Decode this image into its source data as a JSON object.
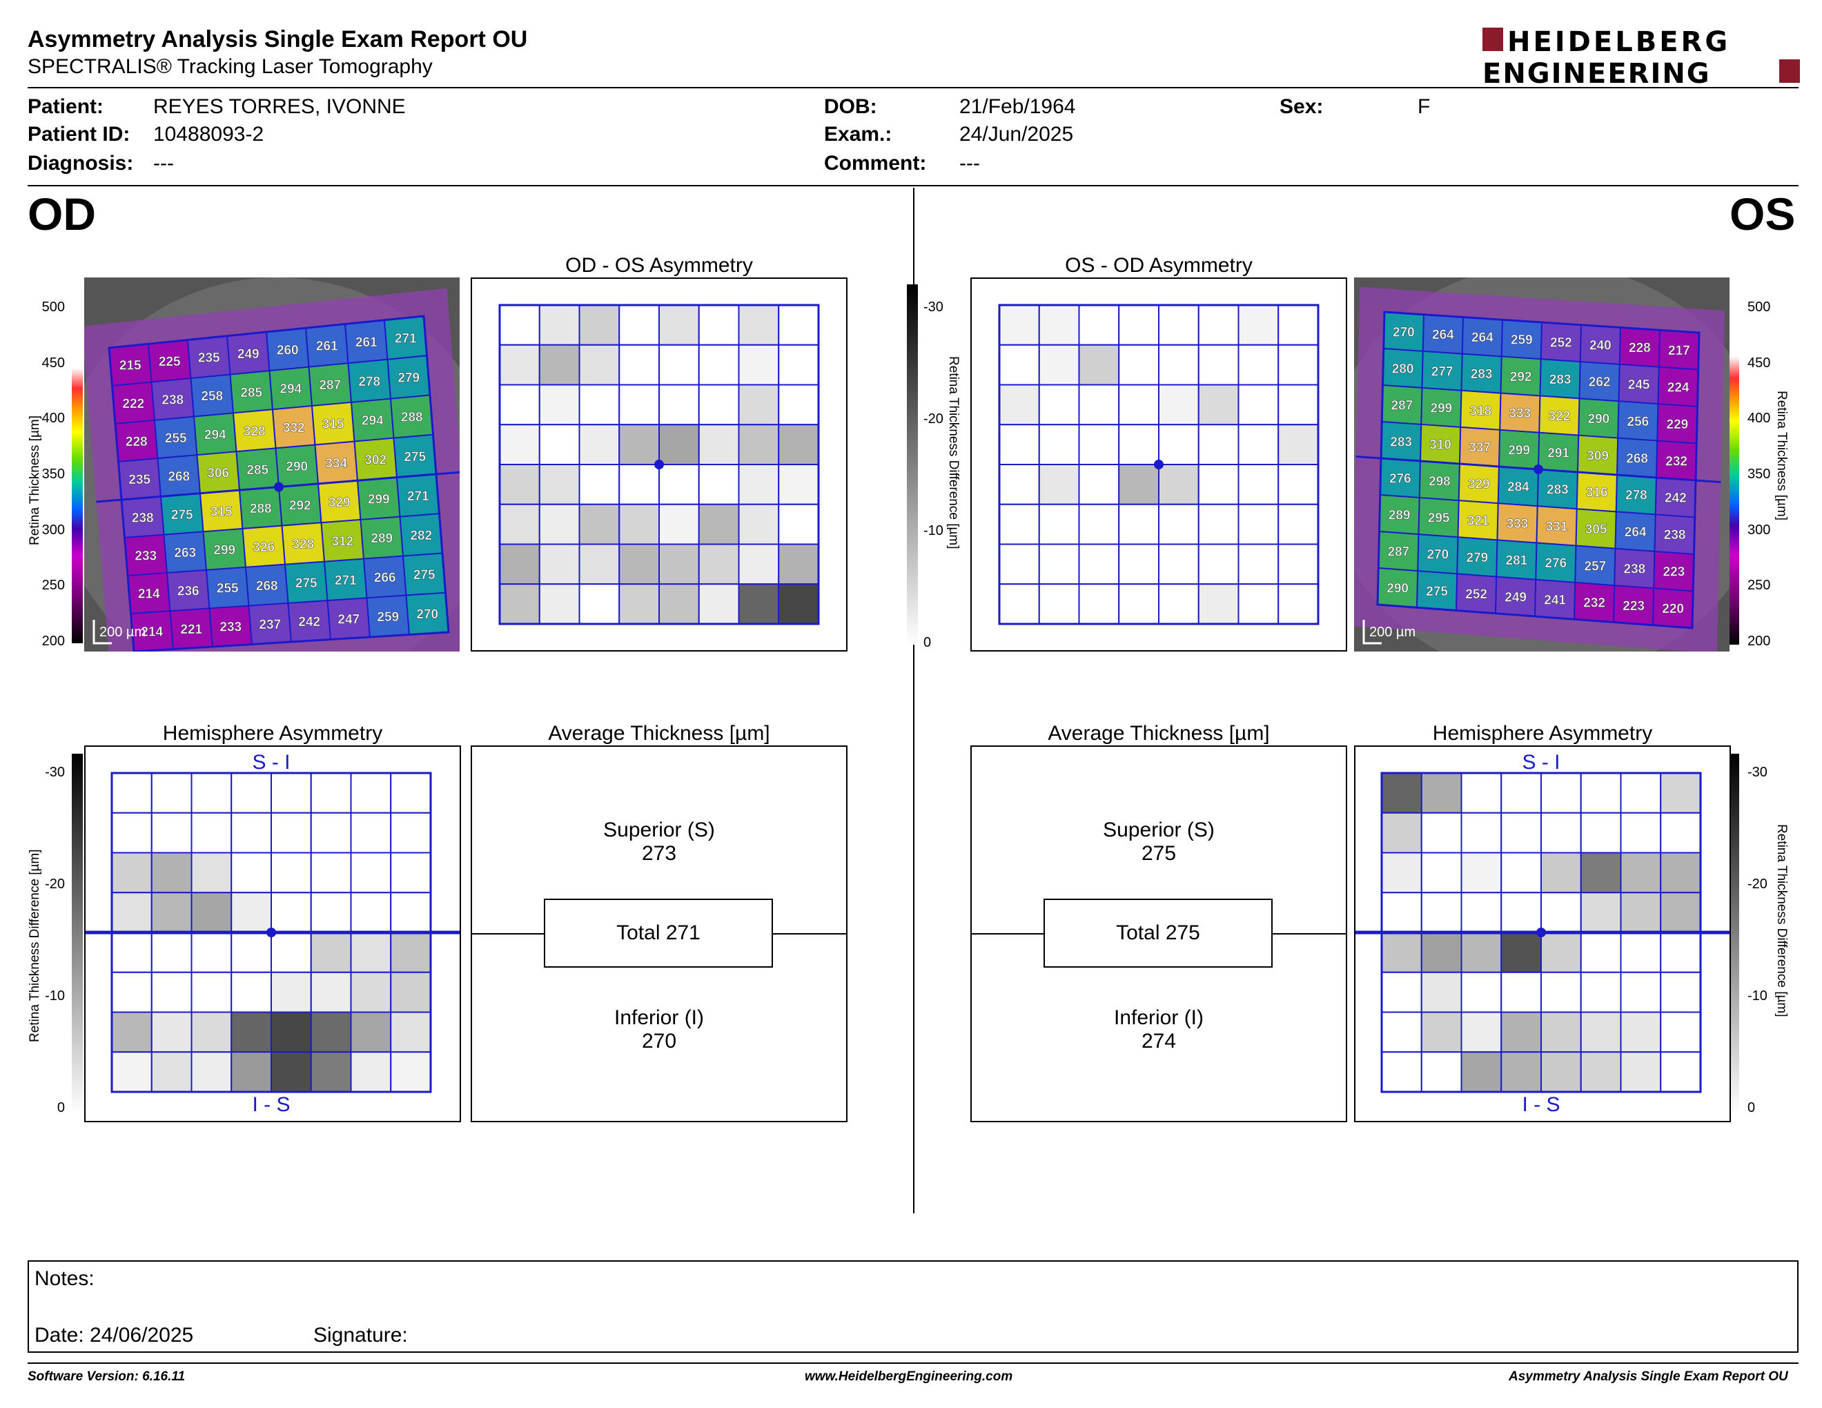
{
  "header": {
    "title": "Asymmetry Analysis Single Exam Report OU",
    "subtitle": "SPECTRALIS® Tracking Laser Tomography",
    "logo_line1": "HEIDELBERG",
    "logo_line2": "ENGINEERING"
  },
  "patient": {
    "patient_label": "Patient:",
    "patient_value": "REYES TORRES, IVONNE",
    "id_label": "Patient ID:",
    "id_value": "10488093-2",
    "diagnosis_label": "Diagnosis:",
    "diagnosis_value": "---",
    "dob_label": "DOB:",
    "dob_value": "21/Feb/1964",
    "exam_label": "Exam.:",
    "exam_value": "24/Jun/2025",
    "comment_label": "Comment:",
    "comment_value": "---",
    "sex_label": "Sex:",
    "sex_value": "F"
  },
  "eyes": {
    "left": "OD",
    "right": "OS"
  },
  "titles": {
    "od_os": "OD - OS Asymmetry",
    "os_od": "OS - OD Asymmetry",
    "hemi_od": "Hemisphere Asymmetry",
    "hemi_os": "Hemisphere Asymmetry",
    "avg_od": "Average Thickness [µm]",
    "avg_os": "Average Thickness [µm]"
  },
  "scales": {
    "thickness_ticks": [
      "500",
      "450",
      "400",
      "350",
      "300",
      "250",
      "200"
    ],
    "diff_ticks": [
      "-30",
      "-20",
      "-10",
      "0"
    ],
    "thickness_label": "Retina Thickness [µm]",
    "diff_label": "Retina Thickness Difference [µm]",
    "scalebar": "200 µm"
  },
  "hemi_labels": {
    "top": "S - I",
    "bottom": "I - S"
  },
  "od_grid": [
    [
      215,
      225,
      235,
      249,
      260,
      261,
      261,
      271
    ],
    [
      222,
      238,
      258,
      285,
      294,
      287,
      278,
      279
    ],
    [
      228,
      255,
      294,
      328,
      332,
      315,
      294,
      288
    ],
    [
      235,
      268,
      306,
      285,
      290,
      334,
      302,
      275
    ],
    [
      238,
      275,
      315,
      288,
      292,
      329,
      299,
      271
    ],
    [
      233,
      263,
      299,
      326,
      328,
      312,
      289,
      282
    ],
    [
      214,
      236,
      255,
      268,
      275,
      271,
      266,
      275
    ],
    [
      214,
      221,
      233,
      237,
      242,
      247,
      259,
      270
    ]
  ],
  "os_grid": [
    [
      270,
      264,
      264,
      259,
      252,
      240,
      228,
      217
    ],
    [
      280,
      277,
      283,
      292,
      283,
      262,
      245,
      224
    ],
    [
      287,
      299,
      318,
      333,
      322,
      290,
      256,
      229
    ],
    [
      283,
      310,
      337,
      299,
      291,
      309,
      268,
      232
    ],
    [
      276,
      298,
      329,
      284,
      283,
      316,
      278,
      242
    ],
    [
      289,
      295,
      321,
      333,
      331,
      305,
      264,
      238
    ],
    [
      287,
      270,
      279,
      281,
      276,
      257,
      238,
      223
    ],
    [
      290,
      275,
      252,
      249,
      241,
      232,
      223,
      220
    ]
  ],
  "od_os_asym": [
    [
      0,
      4,
      8,
      0,
      5,
      0,
      5,
      0
    ],
    [
      4,
      12,
      5,
      0,
      0,
      0,
      2,
      0
    ],
    [
      0,
      2,
      0,
      0,
      0,
      0,
      6,
      0
    ],
    [
      2,
      0,
      3,
      12,
      15,
      4,
      10,
      13
    ],
    [
      7,
      5,
      0,
      0,
      0,
      0,
      3,
      2
    ],
    [
      5,
      3,
      10,
      7,
      2,
      12,
      4,
      0
    ],
    [
      13,
      4,
      5,
      12,
      10,
      7,
      3,
      13
    ],
    [
      10,
      3,
      0,
      8,
      10,
      3,
      26,
      31
    ]
  ],
  "os_od_asym": [
    [
      2,
      2,
      0,
      0,
      0,
      0,
      2,
      0
    ],
    [
      0,
      2,
      8,
      0,
      0,
      0,
      0,
      0
    ],
    [
      3,
      0,
      0,
      0,
      2,
      6,
      0,
      0
    ],
    [
      0,
      0,
      0,
      0,
      0,
      0,
      0,
      4
    ],
    [
      0,
      4,
      0,
      12,
      7,
      0,
      0,
      0
    ],
    [
      0,
      0,
      0,
      0,
      0,
      0,
      0,
      0
    ],
    [
      0,
      0,
      0,
      0,
      0,
      0,
      0,
      0
    ],
    [
      0,
      0,
      0,
      0,
      0,
      3,
      0,
      0
    ]
  ],
  "hemi_od": [
    [
      0,
      0,
      0,
      0,
      0,
      0,
      0,
      0
    ],
    [
      0,
      0,
      0,
      0,
      0,
      0,
      0,
      0
    ],
    [
      8,
      13,
      5,
      0,
      0,
      0,
      0,
      0
    ],
    [
      5,
      12,
      15,
      3,
      0,
      0,
      0,
      0
    ],
    [
      0,
      0,
      0,
      0,
      0,
      8,
      5,
      10
    ],
    [
      0,
      0,
      0,
      0,
      3,
      3,
      6,
      8
    ],
    [
      12,
      4,
      6,
      26,
      31,
      25,
      15,
      5
    ],
    [
      2,
      5,
      3,
      17,
      30,
      22,
      3,
      2
    ]
  ],
  "hemi_os": [
    [
      26,
      14,
      0,
      0,
      0,
      0,
      0,
      7
    ],
    [
      8,
      0,
      0,
      0,
      0,
      0,
      0,
      0
    ],
    [
      3,
      0,
      2,
      0,
      9,
      22,
      12,
      13
    ],
    [
      0,
      0,
      0,
      0,
      0,
      6,
      9,
      12
    ],
    [
      10,
      16,
      12,
      29,
      8,
      0,
      0,
      0
    ],
    [
      0,
      4,
      0,
      0,
      0,
      0,
      0,
      0
    ],
    [
      0,
      8,
      3,
      13,
      8,
      5,
      4,
      0
    ],
    [
      0,
      0,
      15,
      13,
      9,
      7,
      4,
      0
    ]
  ],
  "average_od": {
    "superior_label": "Superior (S)",
    "superior_value": "273",
    "total_label": "Total 271",
    "inferior_label": "Inferior (I)",
    "inferior_value": "270"
  },
  "average_os": {
    "superior_label": "Superior (S)",
    "superior_value": "275",
    "total_label": "Total 275",
    "inferior_label": "Inferior (I)",
    "inferior_value": "274"
  },
  "notes": {
    "notes_label": "Notes:",
    "date_label": "Date: 24/06/2025",
    "signature_label": "Signature:"
  },
  "footer": {
    "software": "Software Version: 6.16.11",
    "website": "www.HeidelbergEngineering.com",
    "report": "Asymmetry Analysis Single Exam Report OU"
  },
  "colors": {
    "grid_blue": "#1a1acc",
    "logo_red": "#8b1a2b"
  }
}
